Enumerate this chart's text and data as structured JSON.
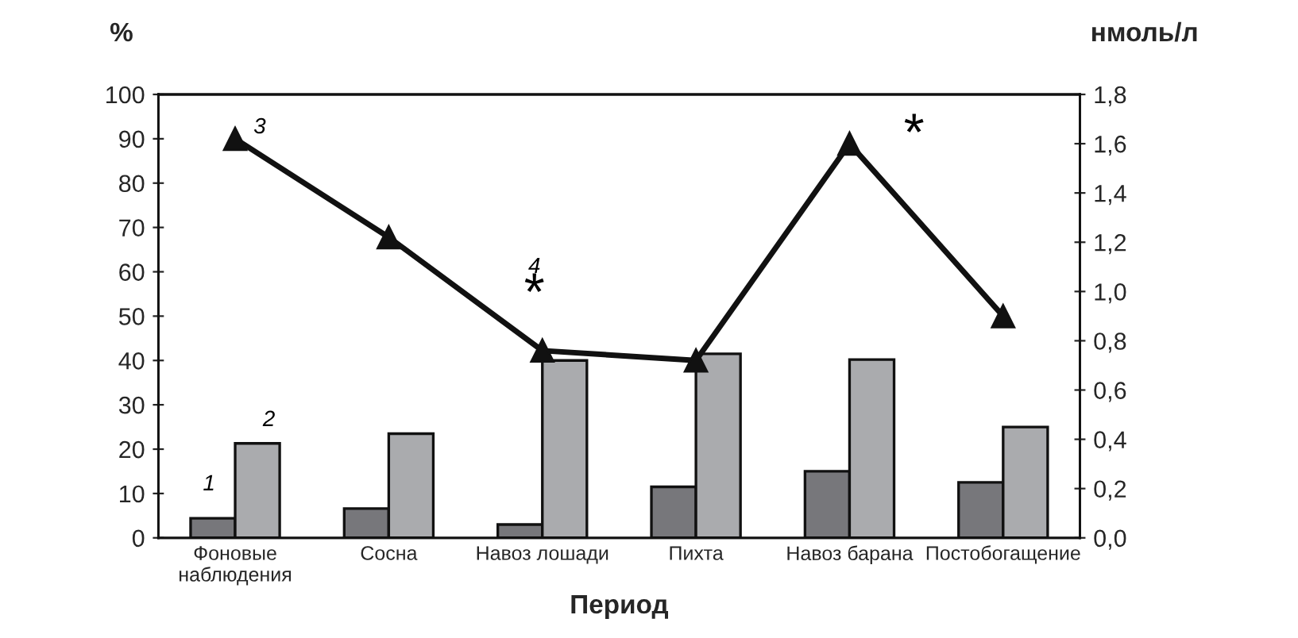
{
  "chart_data": {
    "type": "bar",
    "xlabel": "Период",
    "ylabel": "%",
    "y2label": "нмоль/л",
    "categories": [
      "Фоновые\nнаблюдения",
      "Сосна",
      "Навоз лошади",
      "Пихта",
      "Навоз барана",
      "Постобогащение"
    ],
    "series": [
      {
        "color": "#77777b",
        "values": [
          4.4,
          6.6,
          3.0,
          11.5,
          15.0,
          12.5
        ]
      },
      {
        "color": "#aaabae",
        "values": [
          21.3,
          23.5,
          40.0,
          41.5,
          40.2,
          25.0
        ]
      },
      {
        "type": "line",
        "axis": "y2",
        "color": "#111111",
        "marker": "triangle",
        "line_style": "solid",
        "values": [
          1.62,
          1.22,
          0.76,
          0.72,
          1.6,
          0.9
        ]
      }
    ],
    "ylim": [
      0,
      100
    ],
    "yticks": [
      0,
      10,
      20,
      30,
      40,
      50,
      60,
      70,
      80,
      90,
      100
    ],
    "y2lim": [
      0,
      1.8
    ],
    "y2ticks": [
      {
        "value": 0,
        "label": "0,0"
      },
      {
        "value": 0.2,
        "label": "0,2"
      },
      {
        "value": 0.4,
        "label": "0,4"
      },
      {
        "value": 0.6,
        "label": "0,6"
      },
      {
        "value": 0.8,
        "label": "0,8"
      },
      {
        "value": 1.0,
        "label": "1,0"
      },
      {
        "value": 1.2,
        "label": "1,2"
      },
      {
        "value": 1.4,
        "label": "1,4"
      },
      {
        "value": 1.6,
        "label": "1,6"
      },
      {
        "value": 1.8,
        "label": "1,8"
      }
    ],
    "annotations": [
      "1",
      "2",
      "3",
      "4",
      "*",
      "*"
    ],
    "grid": false,
    "legend": false
  }
}
